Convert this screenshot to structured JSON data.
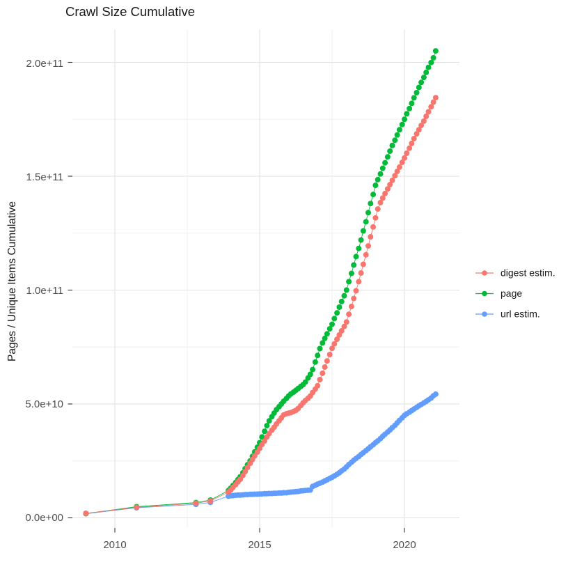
{
  "title": "Crawl Size Cumulative",
  "y_axis": {
    "label": "Pages / Unique Items Cumulative",
    "ticks": [
      "0.0e+00",
      "5.0e+10",
      "1.0e+11",
      "1.5e+11",
      "2.0e+11"
    ]
  },
  "x_axis": {
    "ticks": [
      "2010",
      "2015",
      "2020"
    ]
  },
  "legend": [
    {
      "label": "digest estim.",
      "color": "#F8766D"
    },
    {
      "label": "page",
      "color": "#00BA38"
    },
    {
      "label": "url estim.",
      "color": "#619CFF"
    }
  ],
  "chart_data": {
    "type": "scatter",
    "title": "Crawl Size Cumulative",
    "xlabel": "",
    "ylabel": "Pages / Unique Items Cumulative",
    "x_unit": "year",
    "value_unit": "items (values listed in units of 1e9)",
    "xlim": [
      2008.5,
      2021.9
    ],
    "ylim_e9": [
      -5,
      215
    ],
    "x_ticks": [
      2010,
      2015,
      2020
    ],
    "x_minor_ticks": [
      2012.5,
      2017.5
    ],
    "y_ticks_e9": [
      0,
      50,
      100,
      150,
      200
    ],
    "y_minor_ticks_e9": [
      25,
      75,
      125,
      175
    ],
    "grid": true,
    "legend_position": "right",
    "draw_order": [
      "url estim.",
      "page",
      "digest estim."
    ],
    "series": [
      {
        "name": "digest estim.",
        "color": "#F8766D",
        "points": [
          [
            2009,
            2
          ],
          [
            2010.75,
            4.6
          ],
          [
            2012.8,
            6.4
          ],
          [
            2013.3,
            7.4
          ],
          [
            2013.92,
            11.3
          ],
          [
            2014,
            12.2
          ],
          [
            2014.08,
            13.4
          ],
          [
            2014.17,
            14.6
          ],
          [
            2014.25,
            15.8
          ],
          [
            2014.33,
            16.9
          ],
          [
            2014.42,
            18.6
          ],
          [
            2014.5,
            20.3
          ],
          [
            2014.58,
            22.1
          ],
          [
            2014.67,
            23.9
          ],
          [
            2014.75,
            25.6
          ],
          [
            2014.83,
            27.2
          ],
          [
            2014.92,
            28.9
          ],
          [
            2015,
            30.5
          ],
          [
            2015.08,
            32.2
          ],
          [
            2015.17,
            33.8
          ],
          [
            2015.25,
            35.5
          ],
          [
            2015.33,
            37
          ],
          [
            2015.42,
            38.5
          ],
          [
            2015.5,
            39.8
          ],
          [
            2015.58,
            41.2
          ],
          [
            2015.67,
            42.6
          ],
          [
            2015.75,
            43.9
          ],
          [
            2015.83,
            45.2
          ],
          [
            2015.92,
            45.7
          ],
          [
            2016,
            46
          ],
          [
            2016.08,
            46.2
          ],
          [
            2016.17,
            46.7
          ],
          [
            2016.25,
            47.2
          ],
          [
            2016.33,
            48
          ],
          [
            2016.42,
            49.3
          ],
          [
            2016.5,
            50.5
          ],
          [
            2016.58,
            51.5
          ],
          [
            2016.67,
            52.5
          ],
          [
            2016.75,
            53.5
          ],
          [
            2016.83,
            55
          ],
          [
            2016.92,
            56.5
          ],
          [
            2017,
            58
          ],
          [
            2017.08,
            60.7
          ],
          [
            2017.17,
            63.5
          ],
          [
            2017.25,
            66.2
          ],
          [
            2017.33,
            68.9
          ],
          [
            2017.42,
            71.7
          ],
          [
            2017.5,
            74.4
          ],
          [
            2017.58,
            76.4
          ],
          [
            2017.67,
            78.4
          ],
          [
            2017.75,
            80.3
          ],
          [
            2017.83,
            82.1
          ],
          [
            2017.92,
            84
          ],
          [
            2018,
            86
          ],
          [
            2018.08,
            89.4
          ],
          [
            2018.17,
            92.8
          ],
          [
            2018.25,
            96.3
          ],
          [
            2018.33,
            99.7
          ],
          [
            2018.42,
            103.7
          ],
          [
            2018.5,
            107.5
          ],
          [
            2018.58,
            111.3
          ],
          [
            2018.67,
            115.5
          ],
          [
            2018.75,
            119.4
          ],
          [
            2018.83,
            123.4
          ],
          [
            2018.92,
            127.7
          ],
          [
            2019,
            131.7
          ],
          [
            2019.08,
            135.6
          ],
          [
            2019.17,
            138.4
          ],
          [
            2019.25,
            140.4
          ],
          [
            2019.33,
            142.4
          ],
          [
            2019.42,
            144.4
          ],
          [
            2019.5,
            146.3
          ],
          [
            2019.58,
            148.2
          ],
          [
            2019.67,
            150.2
          ],
          [
            2019.75,
            152.1
          ],
          [
            2019.83,
            154
          ],
          [
            2019.92,
            156.1
          ],
          [
            2020,
            158
          ],
          [
            2020.08,
            160.1
          ],
          [
            2020.17,
            162.3
          ],
          [
            2020.25,
            164.4
          ],
          [
            2020.33,
            166.5
          ],
          [
            2020.42,
            168.6
          ],
          [
            2020.5,
            170.4
          ],
          [
            2020.58,
            172.3
          ],
          [
            2020.67,
            174.2
          ],
          [
            2020.75,
            176.3
          ],
          [
            2020.83,
            178.3
          ],
          [
            2020.92,
            180.5
          ],
          [
            2021,
            182.5
          ],
          [
            2021.08,
            184.5
          ]
        ]
      },
      {
        "name": "page",
        "color": "#00BA38",
        "points": [
          [
            2009,
            1.9
          ],
          [
            2010.75,
            4.9
          ],
          [
            2012.8,
            6.7
          ],
          [
            2013.3,
            7.8
          ],
          [
            2013.92,
            12
          ],
          [
            2014,
            13
          ],
          [
            2014.08,
            14.2
          ],
          [
            2014.17,
            15.5
          ],
          [
            2014.25,
            16.8
          ],
          [
            2014.33,
            18
          ],
          [
            2014.42,
            19.8
          ],
          [
            2014.5,
            21.6
          ],
          [
            2014.58,
            23.3
          ],
          [
            2014.67,
            25
          ],
          [
            2014.75,
            27
          ],
          [
            2014.83,
            29
          ],
          [
            2014.92,
            31
          ],
          [
            2015,
            33
          ],
          [
            2015.08,
            35.5
          ],
          [
            2015.17,
            38
          ],
          [
            2015.25,
            40.5
          ],
          [
            2015.33,
            42.6
          ],
          [
            2015.42,
            44.4
          ],
          [
            2015.5,
            46
          ],
          [
            2015.58,
            47.5
          ],
          [
            2015.67,
            48.8
          ],
          [
            2015.75,
            50
          ],
          [
            2015.83,
            51.2
          ],
          [
            2015.92,
            52.4
          ],
          [
            2016,
            53.5
          ],
          [
            2016.08,
            54.4
          ],
          [
            2016.17,
            55.2
          ],
          [
            2016.25,
            56
          ],
          [
            2016.33,
            56.8
          ],
          [
            2016.42,
            57.7
          ],
          [
            2016.5,
            58.5
          ],
          [
            2016.58,
            59.6
          ],
          [
            2016.67,
            61.4
          ],
          [
            2016.75,
            63
          ],
          [
            2016.83,
            65.1
          ],
          [
            2016.92,
            68.4
          ],
          [
            2017,
            71.3
          ],
          [
            2017.08,
            74.3
          ],
          [
            2017.17,
            76.8
          ],
          [
            2017.25,
            78.8
          ],
          [
            2017.33,
            80.8
          ],
          [
            2017.42,
            83
          ],
          [
            2017.5,
            85
          ],
          [
            2017.58,
            87.5
          ],
          [
            2017.67,
            90
          ],
          [
            2017.75,
            92.5
          ],
          [
            2017.83,
            95
          ],
          [
            2017.92,
            97.5
          ],
          [
            2018,
            100
          ],
          [
            2018.08,
            103.7
          ],
          [
            2018.17,
            107.3
          ],
          [
            2018.25,
            111
          ],
          [
            2018.33,
            114.7
          ],
          [
            2018.42,
            118.3
          ],
          [
            2018.5,
            122
          ],
          [
            2018.58,
            126
          ],
          [
            2018.67,
            130
          ],
          [
            2018.75,
            134
          ],
          [
            2018.83,
            138
          ],
          [
            2018.92,
            142
          ],
          [
            2019,
            146
          ],
          [
            2019.08,
            148.5
          ],
          [
            2019.17,
            151
          ],
          [
            2019.25,
            153.5
          ],
          [
            2019.33,
            155.9
          ],
          [
            2019.42,
            158.5
          ],
          [
            2019.5,
            161
          ],
          [
            2019.58,
            163.5
          ],
          [
            2019.67,
            165.8
          ],
          [
            2019.75,
            168.1
          ],
          [
            2019.83,
            170.4
          ],
          [
            2019.92,
            172.7
          ],
          [
            2020,
            175
          ],
          [
            2020.08,
            177.4
          ],
          [
            2020.17,
            179.7
          ],
          [
            2020.25,
            182
          ],
          [
            2020.33,
            184.4
          ],
          [
            2020.42,
            186.7
          ],
          [
            2020.5,
            189
          ],
          [
            2020.58,
            191.2
          ],
          [
            2020.67,
            193.4
          ],
          [
            2020.75,
            195.6
          ],
          [
            2020.83,
            197.8
          ],
          [
            2020.92,
            199.9
          ],
          [
            2021,
            202
          ],
          [
            2021.08,
            205
          ]
        ]
      },
      {
        "name": "url estim.",
        "color": "#619CFF",
        "points": [
          [
            2009,
            1.8
          ],
          [
            2010.75,
            4.4
          ],
          [
            2012.8,
            5.9
          ],
          [
            2013.3,
            6.8
          ],
          [
            2013.92,
            9.5
          ],
          [
            2014,
            9.7
          ],
          [
            2014.08,
            9.8
          ],
          [
            2014.17,
            9.9
          ],
          [
            2014.25,
            10
          ],
          [
            2014.33,
            10
          ],
          [
            2014.42,
            10.1
          ],
          [
            2014.5,
            10.2
          ],
          [
            2014.58,
            10.2
          ],
          [
            2014.67,
            10.3
          ],
          [
            2014.75,
            10.3
          ],
          [
            2014.83,
            10.4
          ],
          [
            2014.92,
            10.4
          ],
          [
            2015,
            10.5
          ],
          [
            2015.08,
            10.5
          ],
          [
            2015.17,
            10.6
          ],
          [
            2015.25,
            10.6
          ],
          [
            2015.33,
            10.7
          ],
          [
            2015.42,
            10.7
          ],
          [
            2015.5,
            10.8
          ],
          [
            2015.58,
            10.8
          ],
          [
            2015.67,
            10.9
          ],
          [
            2015.75,
            10.9
          ],
          [
            2015.83,
            11
          ],
          [
            2015.92,
            11
          ],
          [
            2016,
            11.2
          ],
          [
            2016.08,
            11.3
          ],
          [
            2016.17,
            11.4
          ],
          [
            2016.25,
            11.5
          ],
          [
            2016.33,
            11.6
          ],
          [
            2016.42,
            11.8
          ],
          [
            2016.5,
            11.9
          ],
          [
            2016.58,
            12
          ],
          [
            2016.67,
            12.1
          ],
          [
            2016.75,
            12.2
          ],
          [
            2016.83,
            13.8
          ],
          [
            2016.92,
            14.3
          ],
          [
            2017,
            14.8
          ],
          [
            2017.08,
            15.2
          ],
          [
            2017.17,
            15.7
          ],
          [
            2017.25,
            16.2
          ],
          [
            2017.33,
            16.7
          ],
          [
            2017.42,
            17.3
          ],
          [
            2017.5,
            17.8
          ],
          [
            2017.58,
            18.4
          ],
          [
            2017.67,
            19.1
          ],
          [
            2017.75,
            19.8
          ],
          [
            2017.83,
            20.6
          ],
          [
            2017.92,
            21.4
          ],
          [
            2018,
            22.4
          ],
          [
            2018.08,
            23.4
          ],
          [
            2018.17,
            24.4
          ],
          [
            2018.25,
            25.3
          ],
          [
            2018.33,
            26.1
          ],
          [
            2018.42,
            26.9
          ],
          [
            2018.5,
            27.8
          ],
          [
            2018.58,
            28.6
          ],
          [
            2018.67,
            29.5
          ],
          [
            2018.75,
            30.3
          ],
          [
            2018.83,
            31.2
          ],
          [
            2018.92,
            32.1
          ],
          [
            2019,
            33
          ],
          [
            2019.08,
            33.8
          ],
          [
            2019.17,
            34.8
          ],
          [
            2019.25,
            35.8
          ],
          [
            2019.33,
            36.7
          ],
          [
            2019.42,
            37.7
          ],
          [
            2019.5,
            38.6
          ],
          [
            2019.58,
            39.6
          ],
          [
            2019.67,
            40.6
          ],
          [
            2019.75,
            41.7
          ],
          [
            2019.83,
            42.8
          ],
          [
            2019.92,
            43.9
          ],
          [
            2020,
            45
          ],
          [
            2020.08,
            45.7
          ],
          [
            2020.17,
            46.4
          ],
          [
            2020.25,
            47.1
          ],
          [
            2020.33,
            47.8
          ],
          [
            2020.42,
            48.5
          ],
          [
            2020.5,
            49.2
          ],
          [
            2020.58,
            49.8
          ],
          [
            2020.67,
            50.5
          ],
          [
            2020.75,
            51.1
          ],
          [
            2020.83,
            51.8
          ],
          [
            2020.92,
            52.6
          ],
          [
            2021,
            53.6
          ],
          [
            2021.08,
            54.3
          ]
        ]
      }
    ]
  }
}
